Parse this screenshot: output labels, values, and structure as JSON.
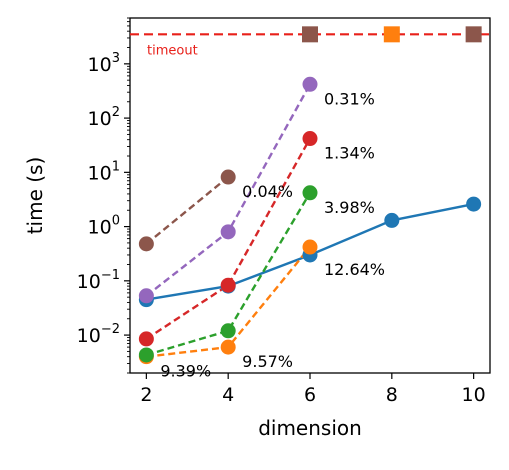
{
  "chart_data": {
    "type": "line",
    "xlabel": "dimension",
    "ylabel": "time (s)",
    "yscale": "log",
    "xlim": [
      1.6,
      10.4
    ],
    "ylim": [
      0.002,
      7000
    ],
    "x_ticks": [
      2,
      4,
      6,
      8,
      10
    ],
    "y_ticks": [
      {
        "value": 0.01,
        "base": "10",
        "exp": "−2"
      },
      {
        "value": 0.1,
        "base": "10",
        "exp": "−1"
      },
      {
        "value": 1,
        "base": "10",
        "exp": "0"
      },
      {
        "value": 10,
        "base": "10",
        "exp": "1"
      },
      {
        "value": 100,
        "base": "10",
        "exp": "2"
      },
      {
        "value": 1000,
        "base": "10",
        "exp": "3"
      }
    ],
    "timeout": {
      "value": 3500,
      "label": "timeout",
      "color": "#e8201a"
    },
    "series": [
      {
        "color": "#1f77b4",
        "style": "solid",
        "marker": "circle",
        "points": [
          {
            "x": 2,
            "y": 0.045
          },
          {
            "x": 4,
            "y": 0.08
          },
          {
            "x": 6,
            "y": 0.3
          },
          {
            "x": 8,
            "y": 1.3
          },
          {
            "x": 10,
            "y": 2.6
          }
        ]
      },
      {
        "color": "#ff7f0e",
        "style": "dashed",
        "marker": "circle",
        "points": [
          {
            "x": 2,
            "y": 0.004
          },
          {
            "x": 4,
            "y": 0.006
          },
          {
            "x": 6,
            "y": 0.42
          }
        ]
      },
      {
        "color": "#2ca02c",
        "style": "dashed",
        "marker": "circle",
        "points": [
          {
            "x": 2,
            "y": 0.0043
          },
          {
            "x": 4,
            "y": 0.012
          },
          {
            "x": 6,
            "y": 4.2
          }
        ]
      },
      {
        "color": "#d62728",
        "style": "dashed",
        "marker": "circle",
        "points": [
          {
            "x": 2,
            "y": 0.0085
          },
          {
            "x": 4,
            "y": 0.083
          },
          {
            "x": 6,
            "y": 42
          }
        ]
      },
      {
        "color": "#9467bd",
        "style": "dashed",
        "marker": "circle",
        "points": [
          {
            "x": 2,
            "y": 0.053
          },
          {
            "x": 4,
            "y": 0.8
          },
          {
            "x": 6,
            "y": 420
          }
        ]
      },
      {
        "color": "#8c564b",
        "style": "dashed",
        "marker": "circle",
        "points": [
          {
            "x": 2,
            "y": 0.48
          },
          {
            "x": 4,
            "y": 8.2
          }
        ]
      }
    ],
    "timeout_markers": [
      {
        "x": 6,
        "color": "#8c564b"
      },
      {
        "x": 8,
        "color": "#ff7f0e"
      },
      {
        "x": 10,
        "color": "#8c564b"
      }
    ],
    "annotations": [
      {
        "text": "0.31%",
        "x": 6,
        "y": 420
      },
      {
        "text": "1.34%",
        "x": 6,
        "y": 42
      },
      {
        "text": "0.04%",
        "x": 4,
        "y": 8.2
      },
      {
        "text": "3.98%",
        "x": 6,
        "y": 4.2
      },
      {
        "text": "12.64%",
        "x": 6,
        "y": 0.3
      },
      {
        "text": "9.57%",
        "x": 4,
        "y": 0.006
      },
      {
        "text": "9.39%",
        "x": 2,
        "y": 0.004
      }
    ]
  }
}
